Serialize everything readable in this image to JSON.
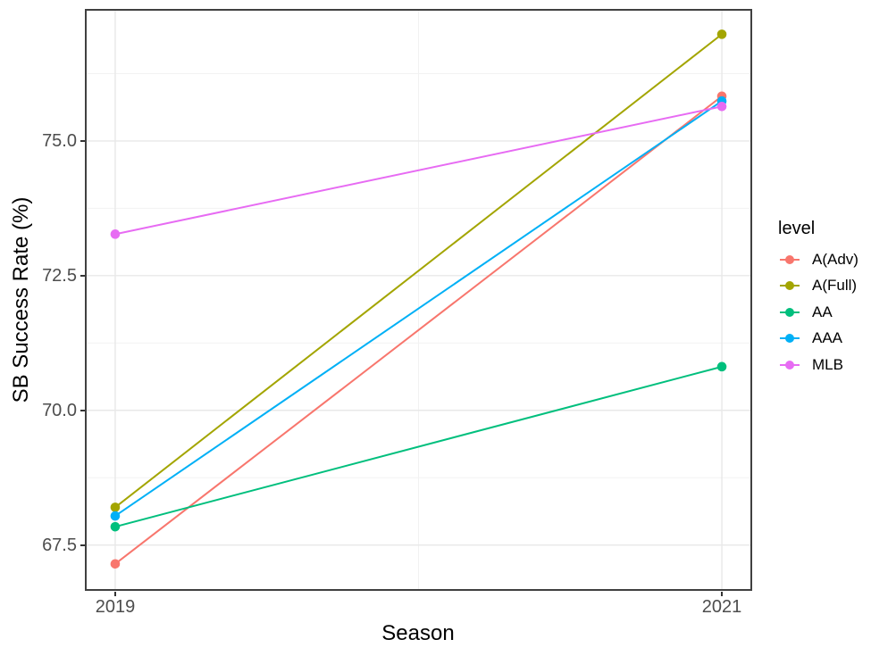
{
  "chart_data": {
    "type": "line",
    "title": "",
    "xlabel": "Season",
    "ylabel": "SB Success Rate (%)",
    "legend_title": "level",
    "legend_position": "right",
    "grid": true,
    "x": [
      2019,
      2021
    ],
    "x_tick_labels": [
      "2019",
      "2021"
    ],
    "xlim": [
      2018.9,
      2021.1
    ],
    "x_minor": [
      2020
    ],
    "yticks": [
      75.0,
      72.5,
      70.0,
      67.5
    ],
    "ytick_labels": [
      "75.0",
      "72.5",
      "70.0",
      "67.5"
    ],
    "y_minor": [
      68.75,
      71.25,
      73.75,
      76.25
    ],
    "ylim": [
      66.65,
      77.45
    ],
    "series": [
      {
        "name": "A(Adv)",
        "color": "#F8766D",
        "values": [
          67.15,
          75.83
        ]
      },
      {
        "name": "A(Full)",
        "color": "#A3A500",
        "values": [
          68.2,
          76.98
        ]
      },
      {
        "name": "AA",
        "color": "#00BF7D",
        "values": [
          67.84,
          70.81
        ]
      },
      {
        "name": "AAA",
        "color": "#00B0F6",
        "values": [
          68.04,
          75.74
        ]
      },
      {
        "name": "MLB",
        "color": "#E76BF3",
        "values": [
          73.27,
          75.64
        ]
      }
    ],
    "style": {
      "panel_border_color": "#404040",
      "grid_major_color": "#E8E8E8",
      "grid_minor_color": "#F2F2F2",
      "point_radius": 5.3,
      "line_width": 2
    }
  }
}
